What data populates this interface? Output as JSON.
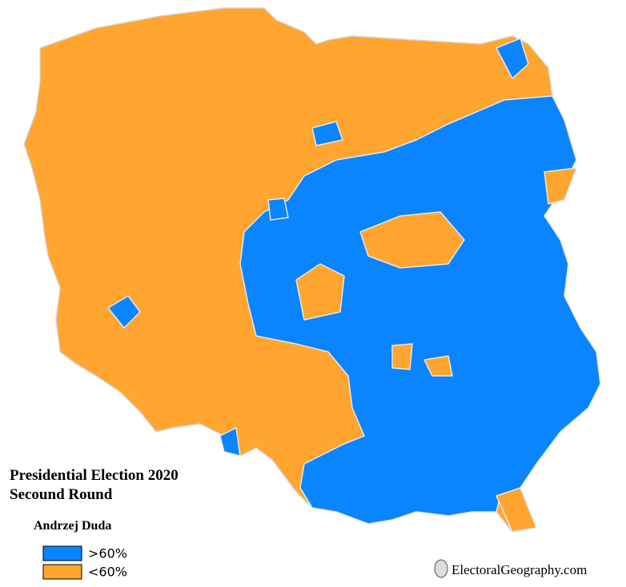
{
  "title": [
    "Presidential Election 2020",
    "Secound Round"
  ],
  "subtitle": "Andrzej Duda",
  "legend": [
    {
      "label": ">60%",
      "color": "#0a84ff"
    },
    {
      "label": "<60%",
      "color": "#ffa530"
    }
  ],
  "credit": "ElectoralGeography.com"
}
